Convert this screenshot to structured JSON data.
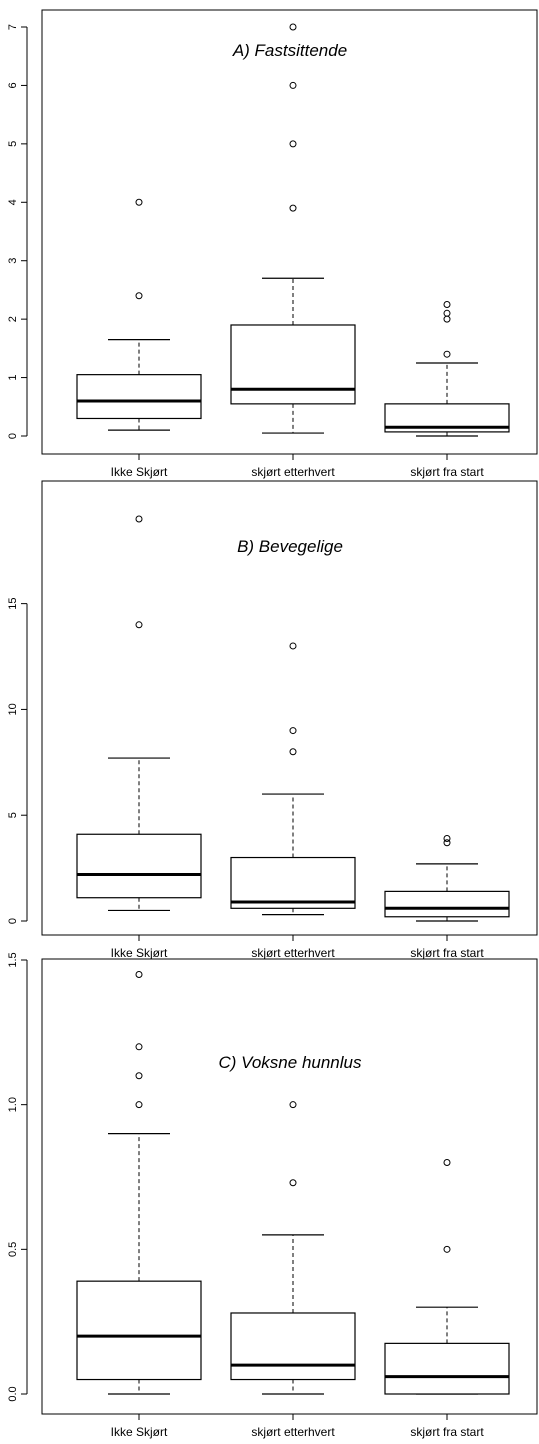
{
  "chart_data": [
    {
      "type": "boxplot",
      "title": "A) Fastsittende",
      "categories": [
        "Ikke Skjørt",
        "skjørt etterhvert",
        "skjørt fra start"
      ],
      "ylim": [
        0,
        7
      ],
      "yticks": [
        0,
        1,
        2,
        3,
        4,
        5,
        6,
        7
      ],
      "boxes": [
        {
          "min": 0.1,
          "q1": 0.3,
          "median": 0.6,
          "q3": 1.05,
          "max": 1.65,
          "outliers": [
            2.4,
            4.0
          ]
        },
        {
          "min": 0.05,
          "q1": 0.55,
          "median": 0.8,
          "q3": 1.9,
          "max": 2.7,
          "outliers": [
            3.9,
            5.0,
            6.0,
            7.0
          ]
        },
        {
          "min": 0.0,
          "q1": 0.07,
          "median": 0.15,
          "q3": 0.55,
          "max": 1.25,
          "outliers": [
            1.4,
            2.0,
            2.1,
            2.25
          ]
        }
      ]
    },
    {
      "type": "boxplot",
      "title": "B) Bevegelige",
      "categories": [
        "Ikke Skjørt",
        "skjørt etterhvert",
        "skjørt fra start"
      ],
      "ylim": [
        0,
        19
      ],
      "yticks": [
        0,
        5,
        10,
        15
      ],
      "boxes": [
        {
          "min": 0.5,
          "q1": 1.1,
          "median": 2.2,
          "q3": 4.1,
          "max": 7.7,
          "outliers": [
            14.0,
            19.0
          ]
        },
        {
          "min": 0.3,
          "q1": 0.6,
          "median": 0.9,
          "q3": 3.0,
          "max": 6.0,
          "outliers": [
            8.0,
            9.0,
            13.0
          ]
        },
        {
          "min": 0.0,
          "q1": 0.2,
          "median": 0.6,
          "q3": 1.4,
          "max": 2.7,
          "outliers": [
            3.7,
            3.9
          ]
        }
      ]
    },
    {
      "type": "boxplot",
      "title": "C) Voksne hunnlus",
      "categories": [
        "Ikke Skjørt",
        "skjørt etterhvert",
        "skjørt fra start"
      ],
      "ylim": [
        0,
        1.5
      ],
      "yticks": [
        0.0,
        0.5,
        1.0,
        1.5
      ],
      "boxes": [
        {
          "min": 0.0,
          "q1": 0.05,
          "median": 0.2,
          "q3": 0.39,
          "max": 0.9,
          "outliers": [
            1.0,
            1.1,
            1.2,
            1.45
          ]
        },
        {
          "min": 0.0,
          "q1": 0.05,
          "median": 0.1,
          "q3": 0.28,
          "max": 0.55,
          "outliers": [
            0.73,
            1.0
          ]
        },
        {
          "min": 0.0,
          "q1": 0.0,
          "median": 0.06,
          "q3": 0.175,
          "max": 0.3,
          "outliers": [
            0.5,
            0.8
          ]
        }
      ]
    }
  ]
}
